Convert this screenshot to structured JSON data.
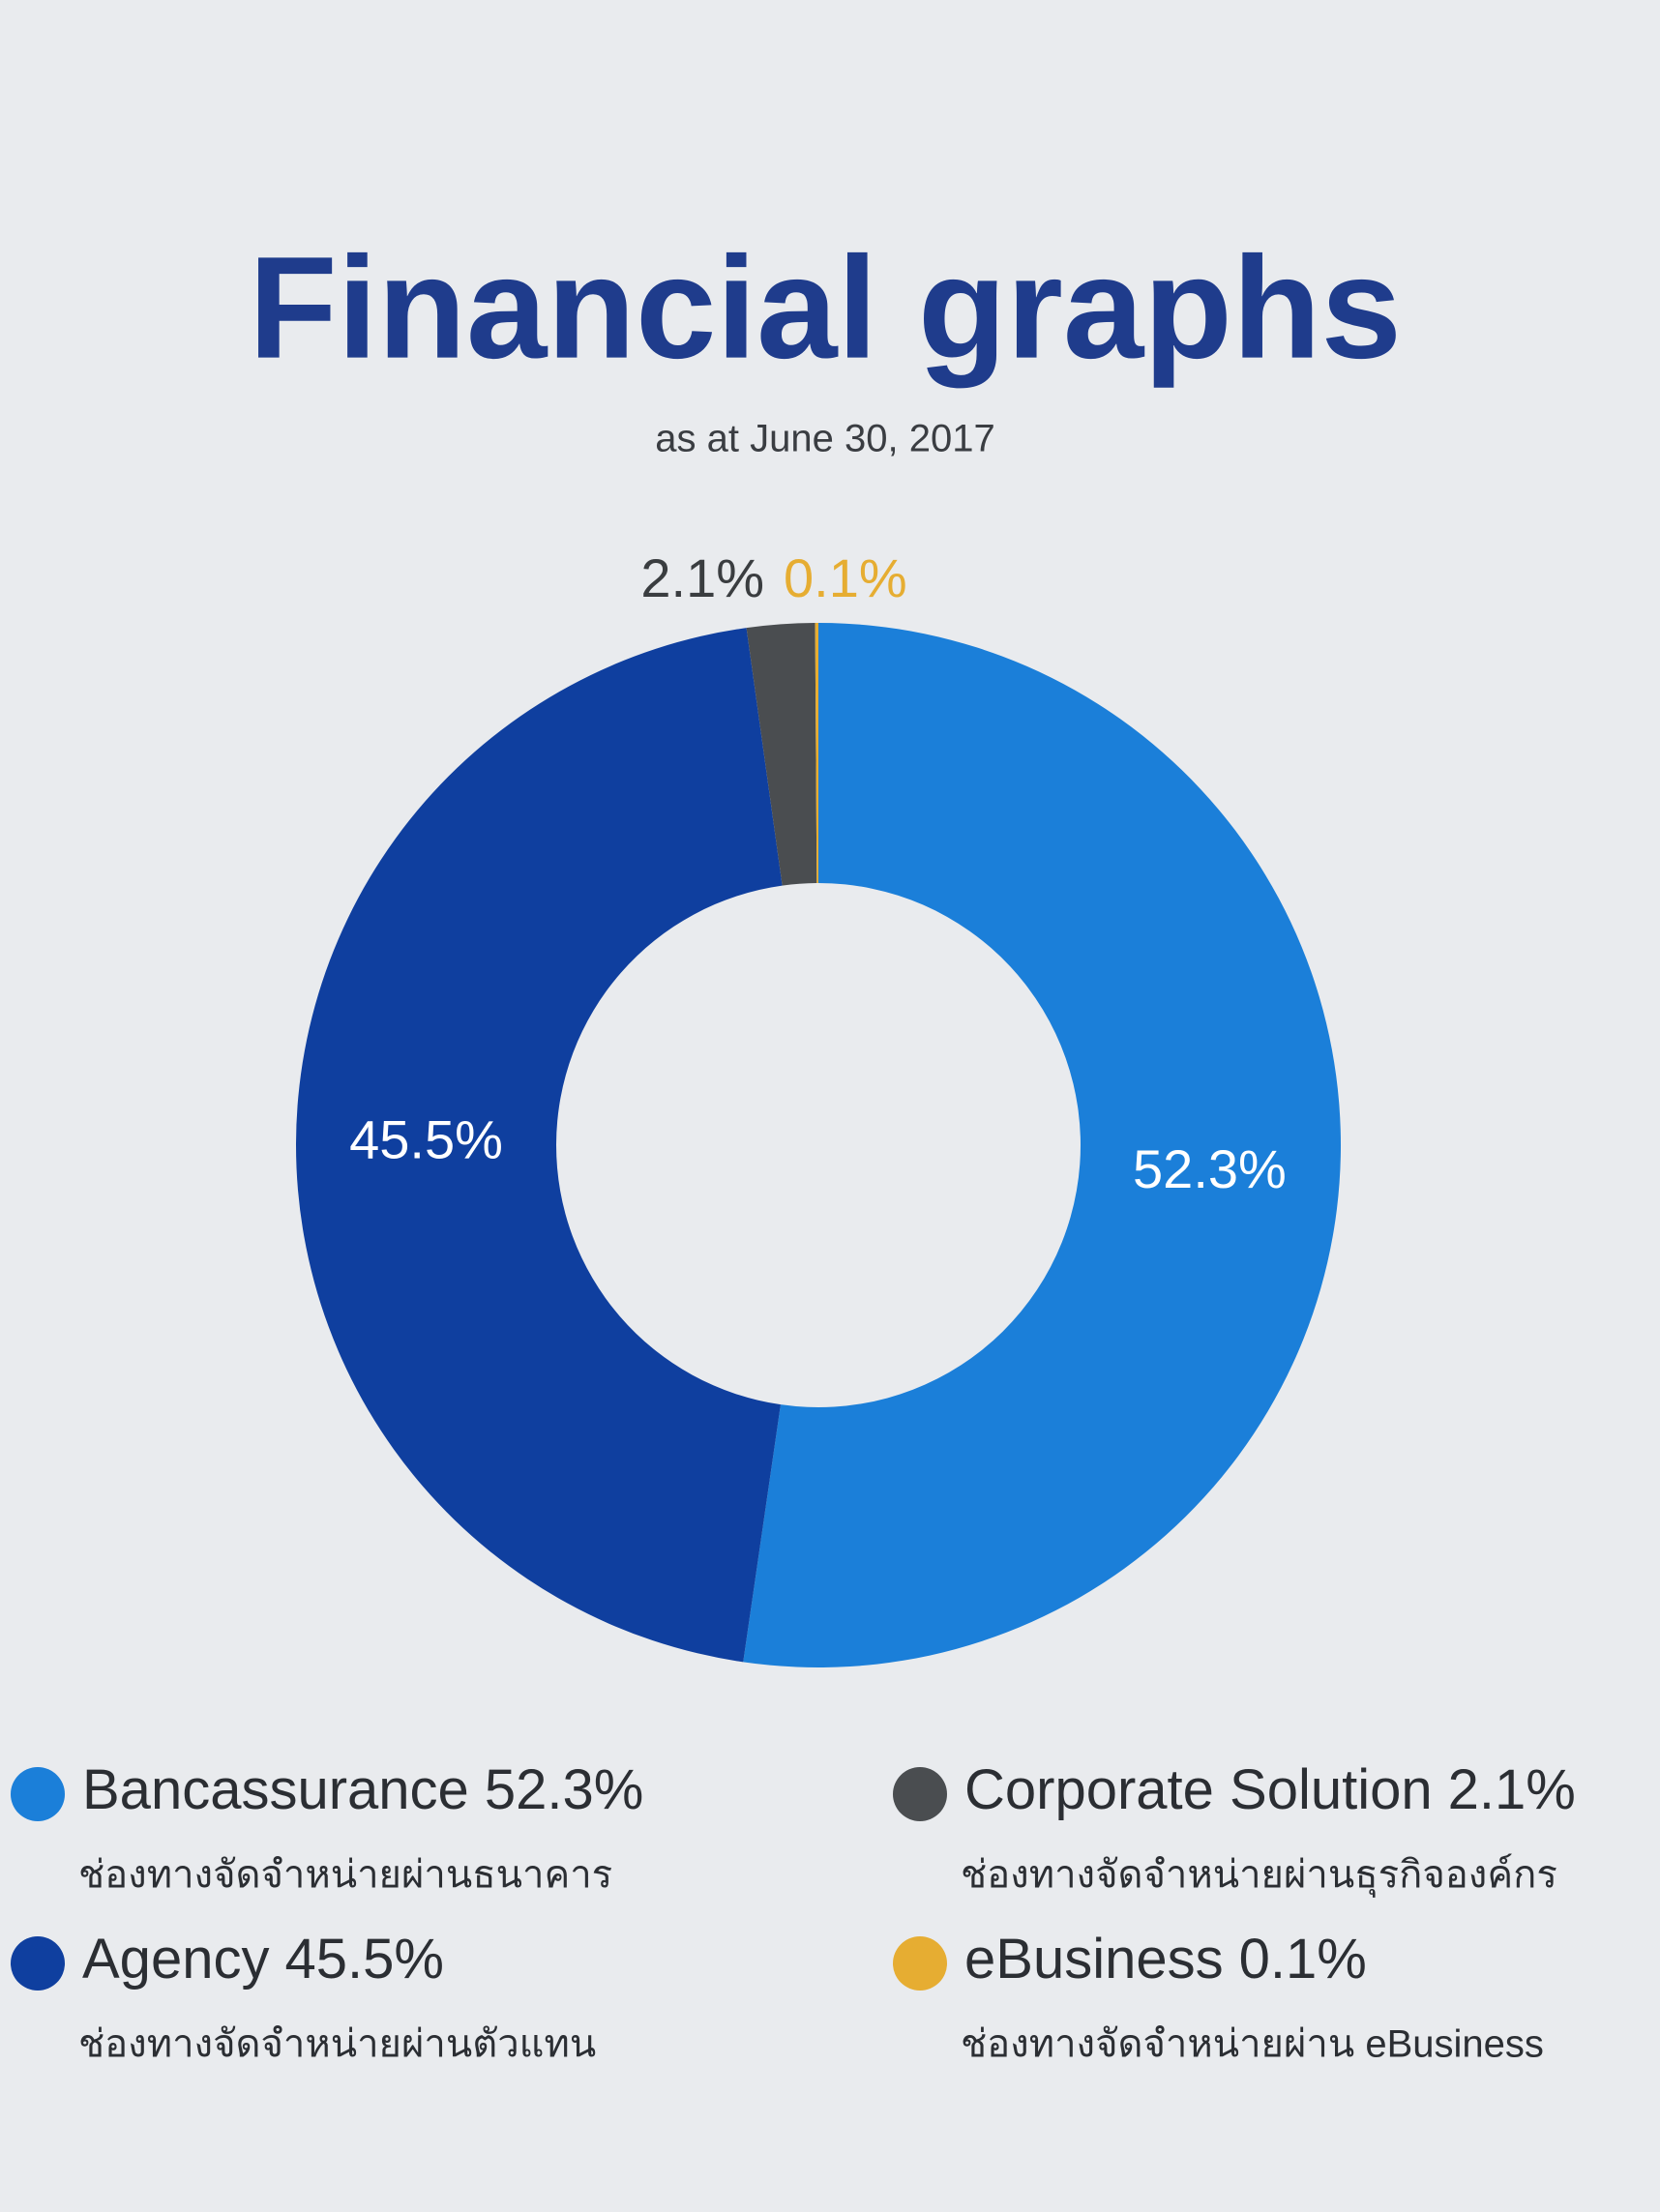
{
  "chart_data": {
    "type": "pie",
    "title": "Financial graphs",
    "subtitle": "as at June 30, 2017",
    "categories": [
      "Bancassurance",
      "Agency",
      "Corporate Solution",
      "eBusiness"
    ],
    "values": [
      52.3,
      45.5,
      2.1,
      0.1
    ],
    "value_labels": [
      "52.3%",
      "45.5%",
      "2.1%",
      "0.1%"
    ],
    "colors": [
      "#1b7fd9",
      "#0f3f9f",
      "#4a4d50",
      "#e6ad32"
    ],
    "descriptions": [
      "ช่องทางจัดจำหน่ายผ่านธนาคาร",
      "ช่องทางจัดจำหน่ายผ่านตัวแทน",
      "ช่องทางจัดจำหน่ายผ่านธุรกิจองค์กร",
      "ช่องทางจัดจำหน่ายผ่าน eBusiness"
    ],
    "donut": true
  }
}
